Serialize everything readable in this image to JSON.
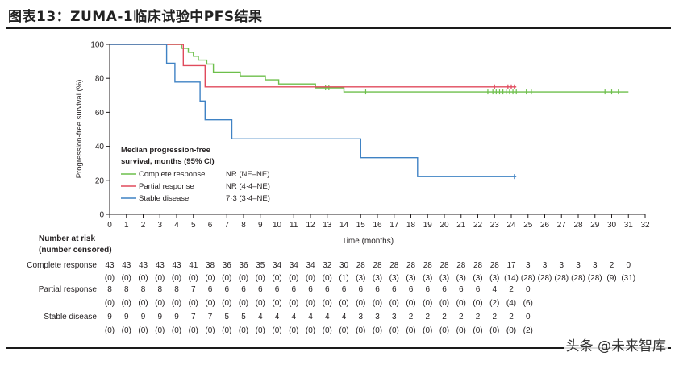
{
  "figure": {
    "title": "图表13：ZUMA-1临床试验中PFS结果",
    "watermark": "头条 @未来智库"
  },
  "chart_data": {
    "type": "line",
    "subtype": "kaplan-meier",
    "xlabel": "Time (months)",
    "ylabel": "Progression-free survival (%)",
    "xlim": [
      0,
      32
    ],
    "ylim": [
      0,
      100
    ],
    "xticks": [
      0,
      1,
      2,
      3,
      4,
      5,
      6,
      7,
      8,
      9,
      10,
      11,
      12,
      13,
      14,
      15,
      16,
      17,
      18,
      19,
      20,
      21,
      22,
      23,
      24,
      25,
      26,
      27,
      28,
      29,
      30,
      31,
      32
    ],
    "yticks": [
      0,
      20,
      40,
      60,
      80,
      100
    ],
    "grid": false,
    "legend": {
      "title": "Median progression-free survival, months (95% CI)",
      "position": "lower-left"
    },
    "series": [
      {
        "name": "Complete response",
        "median": "NR (NE–NE)",
        "color": "#6dbf4b",
        "steps": [
          [
            0,
            100
          ],
          [
            4.3,
            100
          ],
          [
            4.3,
            97.7
          ],
          [
            4.7,
            97.7
          ],
          [
            4.7,
            95.3
          ],
          [
            5.0,
            95.3
          ],
          [
            5.0,
            93.0
          ],
          [
            5.3,
            93.0
          ],
          [
            5.3,
            90.7
          ],
          [
            5.8,
            90.7
          ],
          [
            5.8,
            88.4
          ],
          [
            6.2,
            88.4
          ],
          [
            6.2,
            83.7
          ],
          [
            7.8,
            83.7
          ],
          [
            7.8,
            81.4
          ],
          [
            9.3,
            81.4
          ],
          [
            9.3,
            79.1
          ],
          [
            10.1,
            79.1
          ],
          [
            10.1,
            76.7
          ],
          [
            12.3,
            76.7
          ],
          [
            12.3,
            74.4
          ],
          [
            14.0,
            74.4
          ],
          [
            14.0,
            72.0
          ],
          [
            31,
            72.0
          ]
        ],
        "censored": [
          [
            12.9,
            74.4
          ],
          [
            13.1,
            74.4
          ],
          [
            15.3,
            72.0
          ],
          [
            22.6,
            72.0
          ],
          [
            22.9,
            72.0
          ],
          [
            23.1,
            72.0
          ],
          [
            23.3,
            72.0
          ],
          [
            23.5,
            72.0
          ],
          [
            23.7,
            72.0
          ],
          [
            23.9,
            72.0
          ],
          [
            24.1,
            72.0
          ],
          [
            24.3,
            72.0
          ],
          [
            24.9,
            72.0
          ],
          [
            25.2,
            72.0
          ],
          [
            29.6,
            72.0
          ],
          [
            30.0,
            72.0
          ],
          [
            30.4,
            72.0
          ]
        ]
      },
      {
        "name": "Partial response",
        "median": "NR (4·4–NE)",
        "color": "#e04a5c",
        "steps": [
          [
            0,
            100
          ],
          [
            4.4,
            100
          ],
          [
            4.4,
            87.5
          ],
          [
            5.7,
            87.5
          ],
          [
            5.7,
            75.0
          ],
          [
            24.3,
            75.0
          ]
        ],
        "censored": [
          [
            23.0,
            75.0
          ],
          [
            23.8,
            75.0
          ],
          [
            24.0,
            75.0
          ],
          [
            24.2,
            75.0
          ]
        ]
      },
      {
        "name": "Stable disease",
        "median": "7·3 (3·4–NE)",
        "color": "#3f82c4",
        "steps": [
          [
            0,
            100
          ],
          [
            3.4,
            100
          ],
          [
            3.4,
            88.9
          ],
          [
            3.9,
            88.9
          ],
          [
            3.9,
            77.8
          ],
          [
            5.4,
            77.8
          ],
          [
            5.4,
            66.7
          ],
          [
            5.7,
            66.7
          ],
          [
            5.7,
            55.6
          ],
          [
            7.3,
            55.6
          ],
          [
            7.3,
            44.4
          ],
          [
            15.0,
            44.4
          ],
          [
            15.0,
            33.3
          ],
          [
            18.4,
            33.3
          ],
          [
            18.4,
            22.2
          ],
          [
            24.3,
            22.2
          ]
        ],
        "censored": [
          [
            24.2,
            22.2
          ]
        ]
      }
    ],
    "risk_table": {
      "title": "Number at risk (number censored)",
      "times": [
        0,
        1,
        2,
        3,
        4,
        5,
        6,
        7,
        8,
        9,
        10,
        11,
        12,
        13,
        14,
        15,
        16,
        17,
        18,
        19,
        20,
        21,
        22,
        23,
        24,
        25,
        26,
        27,
        28,
        29,
        30,
        31
      ],
      "rows": [
        {
          "label": "Complete response",
          "at_risk": [
            "43",
            "43",
            "43",
            "43",
            "43",
            "41",
            "38",
            "36",
            "36",
            "35",
            "34",
            "34",
            "34",
            "32",
            "30",
            "28",
            "28",
            "28",
            "28",
            "28",
            "28",
            "28",
            "28",
            "28",
            "17",
            "3",
            "3",
            "3",
            "3",
            "3",
            "2",
            "0"
          ],
          "censored": [
            "(0)",
            "(0)",
            "(0)",
            "(0)",
            "(0)",
            "(0)",
            "(0)",
            "(0)",
            "(0)",
            "(0)",
            "(0)",
            "(0)",
            "(0)",
            "(0)",
            "(1)",
            "(3)",
            "(3)",
            "(3)",
            "(3)",
            "(3)",
            "(3)",
            "(3)",
            "(3)",
            "(3)",
            "(14)",
            "(28)",
            "(28)",
            "(28)",
            "(28)",
            "(28)",
            "(9)",
            "(31)"
          ]
        },
        {
          "label": "Partial response",
          "at_risk": [
            "8",
            "8",
            "8",
            "8",
            "8",
            "7",
            "6",
            "6",
            "6",
            "6",
            "6",
            "6",
            "6",
            "6",
            "6",
            "6",
            "6",
            "6",
            "6",
            "6",
            "6",
            "6",
            "6",
            "4",
            "2",
            "0"
          ],
          "censored": [
            "(0)",
            "(0)",
            "(0)",
            "(0)",
            "(0)",
            "(0)",
            "(0)",
            "(0)",
            "(0)",
            "(0)",
            "(0)",
            "(0)",
            "(0)",
            "(0)",
            "(0)",
            "(0)",
            "(0)",
            "(0)",
            "(0)",
            "(0)",
            "(0)",
            "(0)",
            "(0)",
            "(2)",
            "(4)",
            "(6)"
          ]
        },
        {
          "label": "Stable disease",
          "at_risk": [
            "9",
            "9",
            "9",
            "9",
            "9",
            "7",
            "7",
            "5",
            "5",
            "4",
            "4",
            "4",
            "4",
            "4",
            "4",
            "3",
            "3",
            "3",
            "2",
            "2",
            "2",
            "2",
            "2",
            "2",
            "2",
            "0"
          ],
          "censored": [
            "(0)",
            "(0)",
            "(0)",
            "(0)",
            "(0)",
            "(0)",
            "(0)",
            "(0)",
            "(0)",
            "(0)",
            "(0)",
            "(0)",
            "(0)",
            "(0)",
            "(0)",
            "(0)",
            "(0)",
            "(0)",
            "(0)",
            "(0)",
            "(0)",
            "(0)",
            "(0)",
            "(0)",
            "(0)",
            "(2)"
          ]
        }
      ]
    }
  }
}
